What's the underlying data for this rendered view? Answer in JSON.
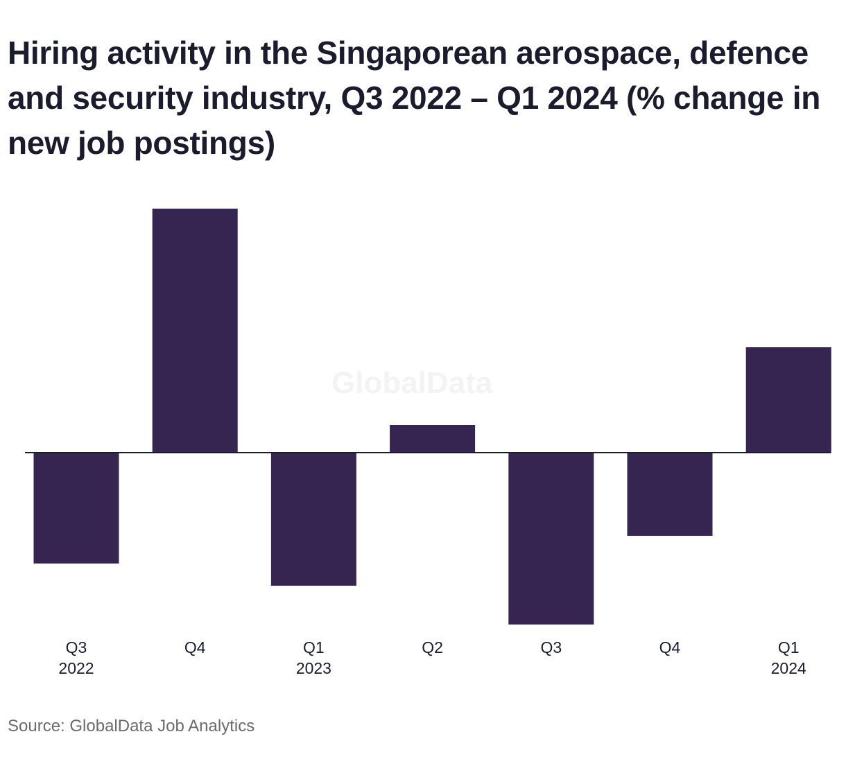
{
  "chart_data": {
    "type": "bar",
    "title": "Hiring activity in the Singaporean aerospace, defence and security industry, Q3 2022 – Q1 2024 (% change in new job postings)",
    "categories": [
      {
        "quarter": "Q3",
        "year": "2022"
      },
      {
        "quarter": "Q4",
        "year": ""
      },
      {
        "quarter": "Q1",
        "year": "2023"
      },
      {
        "quarter": "Q2",
        "year": ""
      },
      {
        "quarter": "Q3",
        "year": ""
      },
      {
        "quarter": "Q4",
        "year": ""
      },
      {
        "quarter": "Q1",
        "year": "2024"
      }
    ],
    "values": [
      -20,
      44,
      -24,
      5,
      -31,
      -15,
      19
    ],
    "ylim": [
      -31,
      44
    ],
    "bar_color": "#352550",
    "axis_color": "#1b1b2e",
    "grid": false,
    "legend": "none"
  },
  "watermark": "GlobalData",
  "source": "Source: GlobalData Job Analytics"
}
